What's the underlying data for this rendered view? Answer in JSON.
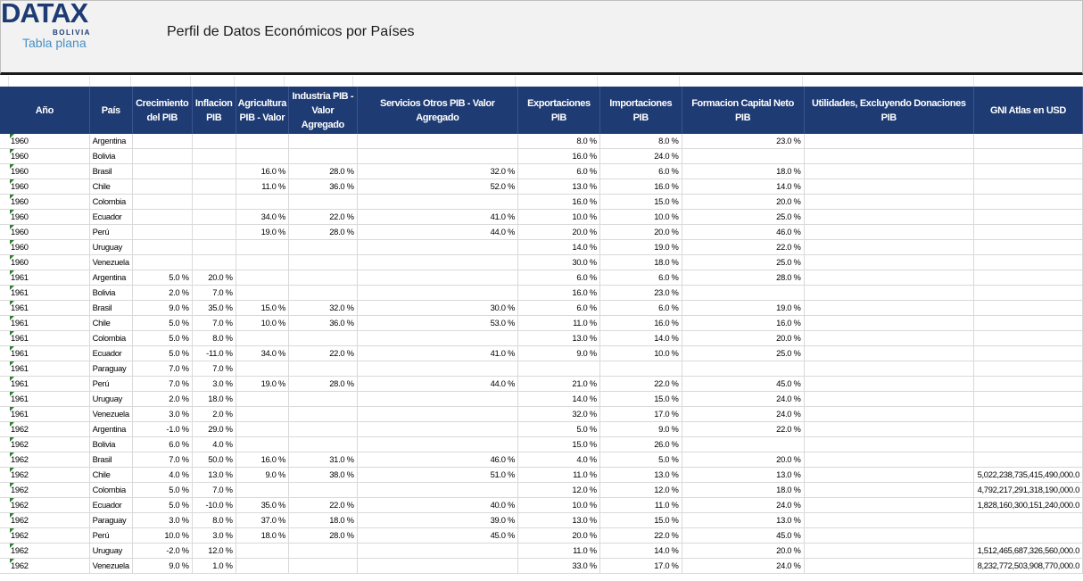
{
  "brand": {
    "logo": "DATAX",
    "logo_sub": "BOLIVIA",
    "subtitle": "Tabla plana"
  },
  "title": "Perfil de Datos Económicos por Países",
  "columns": [
    "Año",
    "País",
    "Crecimiento del PIB",
    "Inflacion PIB",
    "Agricultura PIB - Valor",
    "Industria PIB - Valor Agregado",
    "Servicios Otros PIB - Valor Agregado",
    "Exportaciones PIB",
    "Importaciones PIB",
    "Formacion Capital Neto PIB",
    "Utilidades, Excluyendo Donaciones PIB",
    "GNI Atlas en USD"
  ],
  "rows": [
    [
      "1960",
      "Argentina",
      "",
      "",
      "",
      "",
      "",
      "8.0 %",
      "8.0 %",
      "23.0 %",
      "",
      ""
    ],
    [
      "1960",
      "Bolivia",
      "",
      "",
      "",
      "",
      "",
      "16.0 %",
      "24.0 %",
      "",
      "",
      ""
    ],
    [
      "1960",
      "Brasil",
      "",
      "",
      "16.0 %",
      "28.0 %",
      "32.0 %",
      "6.0 %",
      "6.0 %",
      "18.0 %",
      "",
      ""
    ],
    [
      "1960",
      "Chile",
      "",
      "",
      "11.0 %",
      "36.0 %",
      "52.0 %",
      "13.0 %",
      "16.0 %",
      "14.0 %",
      "",
      ""
    ],
    [
      "1960",
      "Colombia",
      "",
      "",
      "",
      "",
      "",
      "16.0 %",
      "15.0 %",
      "20.0 %",
      "",
      ""
    ],
    [
      "1960",
      "Ecuador",
      "",
      "",
      "34.0 %",
      "22.0 %",
      "41.0 %",
      "10.0 %",
      "10.0 %",
      "25.0 %",
      "",
      ""
    ],
    [
      "1960",
      "Perú",
      "",
      "",
      "19.0 %",
      "28.0 %",
      "44.0 %",
      "20.0 %",
      "20.0 %",
      "46.0 %",
      "",
      ""
    ],
    [
      "1960",
      "Uruguay",
      "",
      "",
      "",
      "",
      "",
      "14.0 %",
      "19.0 %",
      "22.0 %",
      "",
      ""
    ],
    [
      "1960",
      "Venezuela",
      "",
      "",
      "",
      "",
      "",
      "30.0 %",
      "18.0 %",
      "25.0 %",
      "",
      ""
    ],
    [
      "1961",
      "Argentina",
      "5.0 %",
      "20.0 %",
      "",
      "",
      "",
      "6.0 %",
      "6.0 %",
      "28.0 %",
      "",
      ""
    ],
    [
      "1961",
      "Bolivia",
      "2.0 %",
      "7.0 %",
      "",
      "",
      "",
      "16.0 %",
      "23.0 %",
      "",
      "",
      ""
    ],
    [
      "1961",
      "Brasil",
      "9.0 %",
      "35.0 %",
      "15.0 %",
      "32.0 %",
      "30.0 %",
      "6.0 %",
      "6.0 %",
      "19.0 %",
      "",
      ""
    ],
    [
      "1961",
      "Chile",
      "5.0 %",
      "7.0 %",
      "10.0 %",
      "36.0 %",
      "53.0 %",
      "11.0 %",
      "16.0 %",
      "16.0 %",
      "",
      ""
    ],
    [
      "1961",
      "Colombia",
      "5.0 %",
      "8.0 %",
      "",
      "",
      "",
      "13.0 %",
      "14.0 %",
      "20.0 %",
      "",
      ""
    ],
    [
      "1961",
      "Ecuador",
      "5.0 %",
      "-11.0 %",
      "34.0 %",
      "22.0 %",
      "41.0 %",
      "9.0 %",
      "10.0 %",
      "25.0 %",
      "",
      ""
    ],
    [
      "1961",
      "Paraguay",
      "7.0 %",
      "7.0 %",
      "",
      "",
      "",
      "",
      "",
      "",
      "",
      ""
    ],
    [
      "1961",
      "Perú",
      "7.0 %",
      "3.0 %",
      "19.0 %",
      "28.0 %",
      "44.0 %",
      "21.0 %",
      "22.0 %",
      "45.0 %",
      "",
      ""
    ],
    [
      "1961",
      "Uruguay",
      "2.0 %",
      "18.0 %",
      "",
      "",
      "",
      "14.0 %",
      "15.0 %",
      "24.0 %",
      "",
      ""
    ],
    [
      "1961",
      "Venezuela",
      "3.0 %",
      "2.0 %",
      "",
      "",
      "",
      "32.0 %",
      "17.0 %",
      "24.0 %",
      "",
      ""
    ],
    [
      "1962",
      "Argentina",
      "-1.0 %",
      "29.0 %",
      "",
      "",
      "",
      "5.0 %",
      "9.0 %",
      "22.0 %",
      "",
      ""
    ],
    [
      "1962",
      "Bolivia",
      "6.0 %",
      "4.0 %",
      "",
      "",
      "",
      "15.0 %",
      "26.0 %",
      "",
      "",
      ""
    ],
    [
      "1962",
      "Brasil",
      "7.0 %",
      "50.0 %",
      "16.0 %",
      "31.0 %",
      "46.0 %",
      "4.0 %",
      "5.0 %",
      "20.0 %",
      "",
      ""
    ],
    [
      "1962",
      "Chile",
      "4.0 %",
      "13.0 %",
      "9.0 %",
      "38.0 %",
      "51.0 %",
      "11.0 %",
      "13.0 %",
      "13.0 %",
      "",
      "5,022,238,735,415,490,000.0"
    ],
    [
      "1962",
      "Colombia",
      "5.0 %",
      "7.0 %",
      "",
      "",
      "",
      "12.0 %",
      "12.0 %",
      "18.0 %",
      "",
      "4,792,217,291,318,190,000.0"
    ],
    [
      "1962",
      "Ecuador",
      "5.0 %",
      "-10.0 %",
      "35.0 %",
      "22.0 %",
      "40.0 %",
      "10.0 %",
      "11.0 %",
      "24.0 %",
      "",
      "1,828,160,300,151,240,000.0"
    ],
    [
      "1962",
      "Paraguay",
      "3.0 %",
      "8.0 %",
      "37.0 %",
      "18.0 %",
      "39.0 %",
      "13.0 %",
      "15.0 %",
      "13.0 %",
      "",
      ""
    ],
    [
      "1962",
      "Perú",
      "10.0 %",
      "3.0 %",
      "18.0 %",
      "28.0 %",
      "45.0 %",
      "20.0 %",
      "22.0 %",
      "45.0 %",
      "",
      ""
    ],
    [
      "1962",
      "Uruguay",
      "-2.0 %",
      "12.0 %",
      "",
      "",
      "",
      "11.0 %",
      "14.0 %",
      "20.0 %",
      "",
      "1,512,465,687,326,560,000.0"
    ],
    [
      "1962",
      "Venezuela",
      "9.0 %",
      "1.0 %",
      "",
      "",
      "",
      "33.0 %",
      "17.0 %",
      "24.0 %",
      "",
      "8,232,772,503,908,770,000.0"
    ]
  ]
}
